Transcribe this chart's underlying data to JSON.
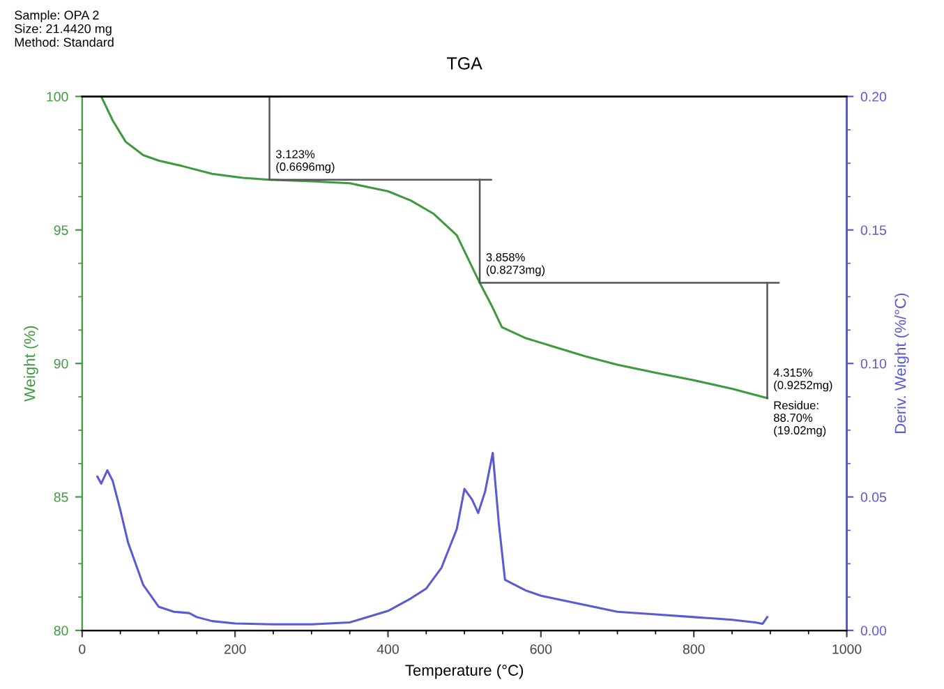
{
  "chart_data": {
    "type": "line",
    "title": "TGA",
    "xlabel": "Temperature (°C)",
    "ylabel": "Weight (%)",
    "y2label": "Deriv. Weight (%/°C)",
    "xlim": [
      0,
      1000
    ],
    "xticks": [
      0,
      200,
      400,
      600,
      800,
      1000
    ],
    "ylim": [
      80,
      100
    ],
    "yticks": [
      80,
      85,
      90,
      95,
      100
    ],
    "y2lim": [
      0,
      0.2
    ],
    "y2ticks": [
      {
        "value": 0,
        "label": "0.00"
      },
      {
        "value": 0.05,
        "label": "0.05"
      },
      {
        "value": 0.1,
        "label": "0.10"
      },
      {
        "value": 0.15,
        "label": "0.15"
      },
      {
        "value": 0.2,
        "label": "0.20"
      }
    ],
    "grid": false,
    "legend": false,
    "line_style": "solid",
    "series": [
      {
        "color": "#3f9a3f",
        "x": [
          25,
          40,
          57,
          80,
          100,
          130,
          170,
          210,
          245,
          300,
          350,
          400,
          430,
          460,
          490,
          520,
          535,
          549,
          580,
          620,
          660,
          700,
          750,
          800,
          850,
          896
        ],
        "values": [
          100,
          99.1,
          98.3,
          97.8,
          97.6,
          97.4,
          97.1,
          96.95,
          96.88,
          96.82,
          96.75,
          96.45,
          96.1,
          95.6,
          94.8,
          93.02,
          92.2,
          91.36,
          90.95,
          90.6,
          90.25,
          89.95,
          89.65,
          89.37,
          89.05,
          88.7
        ]
      },
      {
        "color": "#5a5ad2",
        "axis": "y2",
        "x": [
          20,
          25,
          33,
          40,
          50,
          60,
          80,
          100,
          120,
          140,
          150,
          170,
          200,
          250,
          300,
          350,
          400,
          430,
          450,
          470,
          490,
          500,
          510,
          518,
          527,
          537,
          545,
          553,
          580,
          600,
          650,
          700,
          750,
          800,
          850,
          880,
          890,
          896
        ],
        "values": [
          0.0576,
          0.055,
          0.06,
          0.056,
          0.045,
          0.033,
          0.017,
          0.0089,
          0.007,
          0.0065,
          0.005,
          0.0035,
          0.0026,
          0.0023,
          0.0023,
          0.003,
          0.0073,
          0.012,
          0.0157,
          0.0235,
          0.038,
          0.053,
          0.049,
          0.044,
          0.052,
          0.0665,
          0.04,
          0.019,
          0.015,
          0.013,
          0.01,
          0.007,
          0.006,
          0.005,
          0.004,
          0.003,
          0.0025,
          0.005
        ]
      }
    ],
    "annotations": [
      "Sample: OPA 2\nSize: 21.4420 mg\nMethod: Standard",
      {
        "text": "3.123%\n(0.6696mg)",
        "x": 245,
        "y": 96.88
      },
      {
        "text": "3.858%\n(0.8273mg)",
        "x": 520,
        "y": 93.02
      },
      {
        "text": "4.315%\n(0.9252mg)",
        "x": 896,
        "y": 88.7
      },
      {
        "text": "Residue:\n88.70%\n(19.02mg)",
        "x": 896,
        "y": 88.7
      }
    ]
  }
}
